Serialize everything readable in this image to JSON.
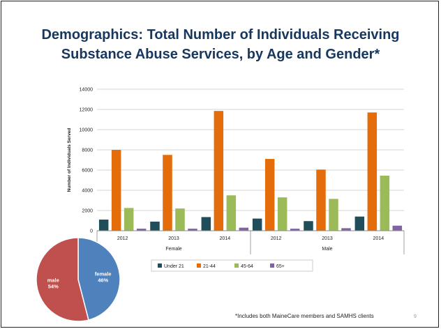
{
  "slide": {
    "title_lines": [
      "Demographics: Total Number of Individuals Receiving",
      "Substance Abuse Services, by Age and Gender*"
    ],
    "footnote": "*Includes both MaineCare members and SAMHS clients",
    "page_number": "9"
  },
  "chart_data": [
    {
      "type": "bar",
      "ylabel": "Number of Individuals Served",
      "ylim": [
        0,
        14000
      ],
      "yticks": [
        0,
        2000,
        4000,
        6000,
        8000,
        10000,
        12000,
        14000
      ],
      "groups": [
        "Female",
        "Male"
      ],
      "categories": [
        "2012",
        "2013",
        "2014",
        "2012",
        "2013",
        "2014"
      ],
      "grid": true,
      "legend_position": "bottom",
      "series": [
        {
          "name": "Under 21",
          "color": "#1f4e5a",
          "values": [
            1100,
            900,
            1350,
            1200,
            950,
            1400
          ]
        },
        {
          "name": "21-44",
          "color": "#e46c0a",
          "values": [
            8000,
            7500,
            11850,
            7100,
            6050,
            11700
          ]
        },
        {
          "name": "45-64",
          "color": "#9bbb59",
          "values": [
            2250,
            2200,
            3500,
            3300,
            3150,
            5450
          ]
        },
        {
          "name": "65+",
          "color": "#8064a2",
          "values": [
            200,
            200,
            300,
            200,
            250,
            500
          ]
        }
      ]
    },
    {
      "type": "pie",
      "slices": [
        {
          "label": "female",
          "pct_label": "46%",
          "value": 46,
          "color": "#4f81bd"
        },
        {
          "label": "male",
          "pct_label": "54%",
          "value": 54,
          "color": "#c0504d"
        }
      ]
    }
  ]
}
